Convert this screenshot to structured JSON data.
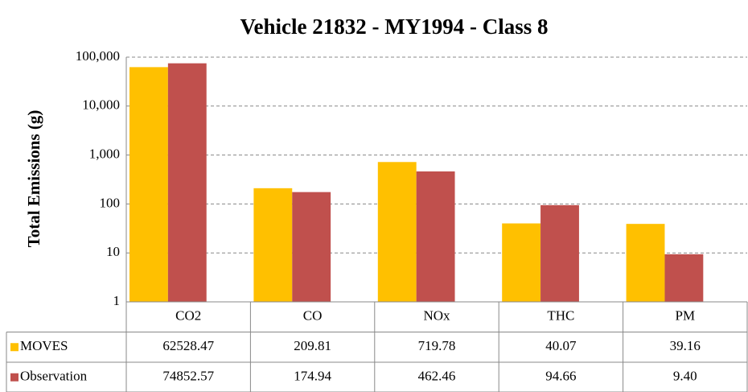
{
  "chart_data": {
    "type": "bar",
    "title": "Vehicle 21832 - MY1994 - Class 8",
    "y_label": "Total Emissions (g)",
    "categories": [
      "CO2",
      "CO",
      "NOx",
      "THC",
      "PM"
    ],
    "series": [
      {
        "name": "MOVES",
        "color": "#FFC000",
        "values": [
          62528.47,
          209.81,
          719.78,
          40.07,
          39.16
        ],
        "value_labels": [
          "62528.47",
          "209.81",
          "719.78",
          "40.07",
          "39.16"
        ]
      },
      {
        "name": "Observation",
        "color": "#C0504D",
        "values": [
          74852.57,
          174.94,
          462.46,
          94.66,
          9.4
        ],
        "value_labels": [
          "74852.57",
          "174.94",
          "462.46",
          "94.66",
          "9.40"
        ]
      }
    ],
    "log_scale": true,
    "ylim": [
      1,
      100000
    ],
    "yticks": [
      1,
      10,
      100,
      {
        "value": 1000,
        "label": "1,000"
      },
      {
        "value": 10000,
        "label": "10,000"
      },
      {
        "value": 100000,
        "label": "100,000"
      }
    ],
    "grid": true
  }
}
